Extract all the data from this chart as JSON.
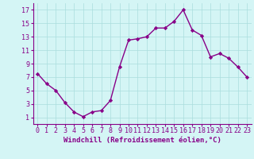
{
  "x": [
    0,
    1,
    2,
    3,
    4,
    5,
    6,
    7,
    8,
    9,
    10,
    11,
    12,
    13,
    14,
    15,
    16,
    17,
    18,
    19,
    20,
    21,
    22,
    23
  ],
  "y": [
    7.5,
    6.0,
    5.0,
    3.2,
    1.8,
    1.1,
    1.8,
    2.0,
    3.5,
    8.5,
    12.5,
    12.7,
    13.0,
    14.3,
    14.3,
    15.3,
    17.0,
    14.0,
    13.2,
    10.0,
    10.5,
    9.8,
    8.5,
    7.0
  ],
  "line_color": "#880088",
  "marker": "D",
  "marker_size": 2.2,
  "line_width": 1.0,
  "bg_color": "#d4f5f5",
  "grid_color": "#aadddd",
  "xlabel": "Windchill (Refroidissement éolien,°C)",
  "xlabel_fontsize": 6.5,
  "ylabel_ticks": [
    1,
    3,
    5,
    7,
    9,
    11,
    13,
    15,
    17
  ],
  "xtick_labels": [
    "0",
    "1",
    "2",
    "3",
    "4",
    "5",
    "6",
    "7",
    "8",
    "9",
    "10",
    "11",
    "12",
    "13",
    "14",
    "15",
    "16",
    "17",
    "18",
    "19",
    "20",
    "21",
    "22",
    "23"
  ],
  "ylim": [
    0,
    18
  ],
  "xlim": [
    -0.5,
    23.5
  ],
  "tick_fontsize": 6.0,
  "label_color": "#880088"
}
